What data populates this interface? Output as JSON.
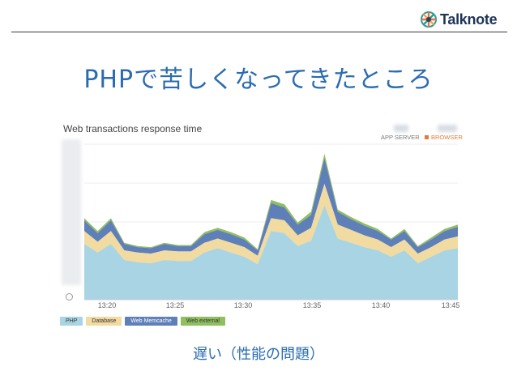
{
  "logo": {
    "text": "Talknote"
  },
  "slide_title": "PHPで苦しくなってきたところ",
  "caption": "遅い（性能の問題）",
  "chart_data": {
    "type": "area",
    "stacked": true,
    "title": "Web transactions response time",
    "legend_right": [
      {
        "label": "APP SERVER",
        "color": "#9aa0a6"
      },
      {
        "label": "BROWSER",
        "color": "#e07b39"
      }
    ],
    "x_ticks": [
      "13:20",
      "13:25",
      "13:30",
      "13:35",
      "13:40",
      "13:45"
    ],
    "x": [
      0,
      1,
      2,
      3,
      4,
      5,
      6,
      7,
      8,
      9,
      10,
      11,
      12,
      13,
      14,
      15,
      16,
      17,
      18,
      19,
      20,
      21,
      22,
      23,
      24,
      25,
      26,
      27,
      28
    ],
    "series": [
      {
        "name": "PHP",
        "color": "#a8d4e3",
        "values": [
          52,
          44,
          52,
          37,
          35,
          34,
          37,
          36,
          36,
          44,
          48,
          44,
          40,
          33,
          64,
          62,
          50,
          55,
          88,
          57,
          53,
          49,
          46,
          40,
          46,
          34,
          40,
          46,
          48
        ]
      },
      {
        "name": "Database",
        "color": "#f2dba0",
        "values": [
          12,
          10,
          12,
          9,
          9,
          9,
          9,
          9,
          9,
          9,
          9,
          9,
          9,
          8,
          12,
          12,
          10,
          12,
          20,
          13,
          12,
          11,
          10,
          9,
          10,
          9,
          9,
          10,
          11
        ]
      },
      {
        "name": "Web Memcache",
        "color": "#5f7fb8",
        "values": [
          10,
          8,
          10,
          6,
          5,
          5,
          6,
          5,
          5,
          8,
          8,
          8,
          7,
          5,
          14,
          12,
          10,
          12,
          24,
          12,
          10,
          9,
          8,
          7,
          8,
          6,
          7,
          8,
          9
        ]
      },
      {
        "name": "Web external",
        "color": "#8fbf5f",
        "values": [
          2,
          2,
          2,
          1,
          1,
          1,
          1,
          1,
          1,
          2,
          2,
          2,
          2,
          1,
          3,
          3,
          2,
          3,
          4,
          2,
          2,
          2,
          2,
          1,
          2,
          1,
          2,
          2,
          2
        ]
      }
    ],
    "ylim": [
      0,
      145
    ]
  }
}
